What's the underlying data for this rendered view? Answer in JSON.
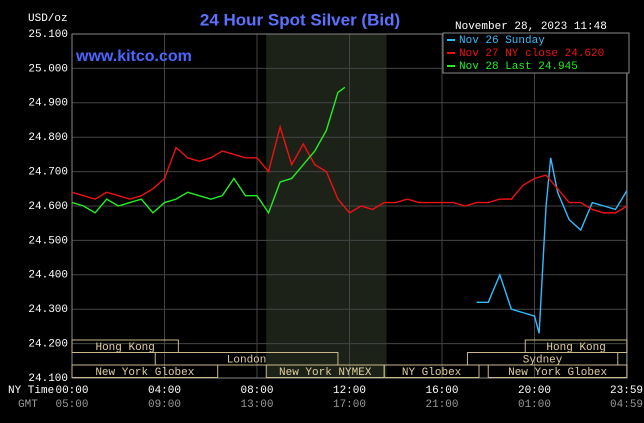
{
  "chart_data": {
    "type": "line",
    "title": "24 Hour Spot Silver (Bid)",
    "y_unit": "USD/oz",
    "timestamp": "November 28, 2023 11:48",
    "watermark": "www.kitco.com",
    "xlim": [
      0,
      24
    ],
    "ylim": [
      24.1,
      25.1
    ],
    "yticks": [
      {
        "value": 24.1,
        "label": "24.100"
      },
      {
        "value": 24.2,
        "label": "24.200"
      },
      {
        "value": 24.3,
        "label": "24.300"
      },
      {
        "value": 24.4,
        "label": "24.400"
      },
      {
        "value": 24.5,
        "label": "24.500"
      },
      {
        "value": 24.6,
        "label": "24.600"
      },
      {
        "value": 24.7,
        "label": "24.700"
      },
      {
        "value": 24.8,
        "label": "24.800"
      },
      {
        "value": 24.9,
        "label": "24.900"
      },
      {
        "value": 25.0,
        "label": "25.000"
      },
      {
        "value": 25.1,
        "label": "25.100"
      }
    ],
    "xticks": [
      {
        "value": 0,
        "label": "00:00"
      },
      {
        "value": 4,
        "label": "04:00"
      },
      {
        "value": 8,
        "label": "08:00"
      },
      {
        "value": 12,
        "label": "12:00"
      },
      {
        "value": 16,
        "label": "16:00"
      },
      {
        "value": 20,
        "label": "20:00"
      },
      {
        "value": 23.98,
        "label": "23:59"
      }
    ],
    "x_row_labels": [
      "NY Time",
      "GMT"
    ],
    "gmt_tick_labels": [
      "05:00",
      "09:00",
      "13:00",
      "17:00",
      "21:00",
      "01:00",
      "04:59"
    ],
    "grid": true,
    "shaded_region": [
      8.4,
      13.6
    ],
    "sessions": [
      {
        "label": "Hong Kong",
        "start": 0,
        "end": 4.6,
        "row": 0
      },
      {
        "label": "Hong Kong",
        "start": 19.6,
        "end": 24,
        "row": 0
      },
      {
        "label": "London",
        "start": 3.6,
        "end": 11.5,
        "row": 1
      },
      {
        "label": "Sydney",
        "start": 17.1,
        "end": 23.6,
        "row": 1
      },
      {
        "label": "New York Globex",
        "start": 0,
        "end": 6.3,
        "row": 2
      },
      {
        "label": "New York NYMEX",
        "start": 8.4,
        "end": 13.5,
        "row": 2
      },
      {
        "label": "NY Globex",
        "start": 13.5,
        "end": 17.6,
        "row": 2
      },
      {
        "label": "New York Globex",
        "start": 18.0,
        "end": 24,
        "row": 2
      }
    ],
    "series": [
      {
        "name": "Nov 26 Sunday",
        "color": "#33bbff",
        "x": [
          17.5,
          18,
          18.5,
          19,
          19.5,
          20,
          20.2,
          20.5,
          20.7,
          21,
          21.5,
          22,
          22.5,
          23,
          23.5,
          24
        ],
        "values": [
          24.32,
          24.32,
          24.4,
          24.3,
          24.29,
          24.28,
          24.23,
          24.6,
          24.74,
          24.64,
          24.56,
          24.53,
          24.61,
          24.6,
          24.59,
          24.645
        ]
      },
      {
        "name": "Nov 27 NY close 24.620",
        "color": "#ee1111",
        "x": [
          0,
          0.5,
          1,
          1.5,
          2,
          2.5,
          3,
          3.5,
          4,
          4.5,
          5,
          5.5,
          6,
          6.5,
          7,
          7.5,
          8,
          8.5,
          9,
          9.5,
          10,
          10.5,
          11,
          11.5,
          12,
          12.5,
          13,
          13.5,
          14,
          14.5,
          15,
          15.5,
          16,
          16.5,
          17,
          17.5,
          18,
          18.5,
          19,
          19.5,
          20,
          20.5,
          21,
          21.5,
          22,
          22.5,
          23,
          23.5,
          24
        ],
        "values": [
          24.64,
          24.63,
          24.62,
          24.64,
          24.63,
          24.62,
          24.63,
          24.65,
          24.68,
          24.77,
          24.74,
          24.73,
          24.74,
          24.76,
          24.75,
          24.74,
          24.74,
          24.7,
          24.83,
          24.72,
          24.78,
          24.72,
          24.7,
          24.62,
          24.58,
          24.6,
          24.59,
          24.61,
          24.61,
          24.62,
          24.61,
          24.61,
          24.61,
          24.61,
          24.6,
          24.61,
          24.61,
          24.62,
          24.62,
          24.66,
          24.68,
          24.69,
          24.65,
          24.61,
          24.61,
          24.59,
          24.58,
          24.58,
          24.6
        ]
      },
      {
        "name": "Nov 28 Last 24.945",
        "color": "#22ee22",
        "x": [
          0,
          0.5,
          1,
          1.5,
          2,
          2.5,
          3,
          3.5,
          4,
          4.5,
          5,
          5.5,
          6,
          6.5,
          7,
          7.5,
          8,
          8.5,
          9,
          9.5,
          10,
          10.5,
          11,
          11.5,
          11.8
        ],
        "values": [
          24.61,
          24.6,
          24.58,
          24.62,
          24.6,
          24.61,
          24.62,
          24.58,
          24.61,
          24.62,
          24.64,
          24.63,
          24.62,
          24.63,
          24.68,
          24.63,
          24.63,
          24.58,
          24.67,
          24.68,
          24.72,
          24.76,
          24.82,
          24.93,
          24.945
        ]
      }
    ]
  }
}
